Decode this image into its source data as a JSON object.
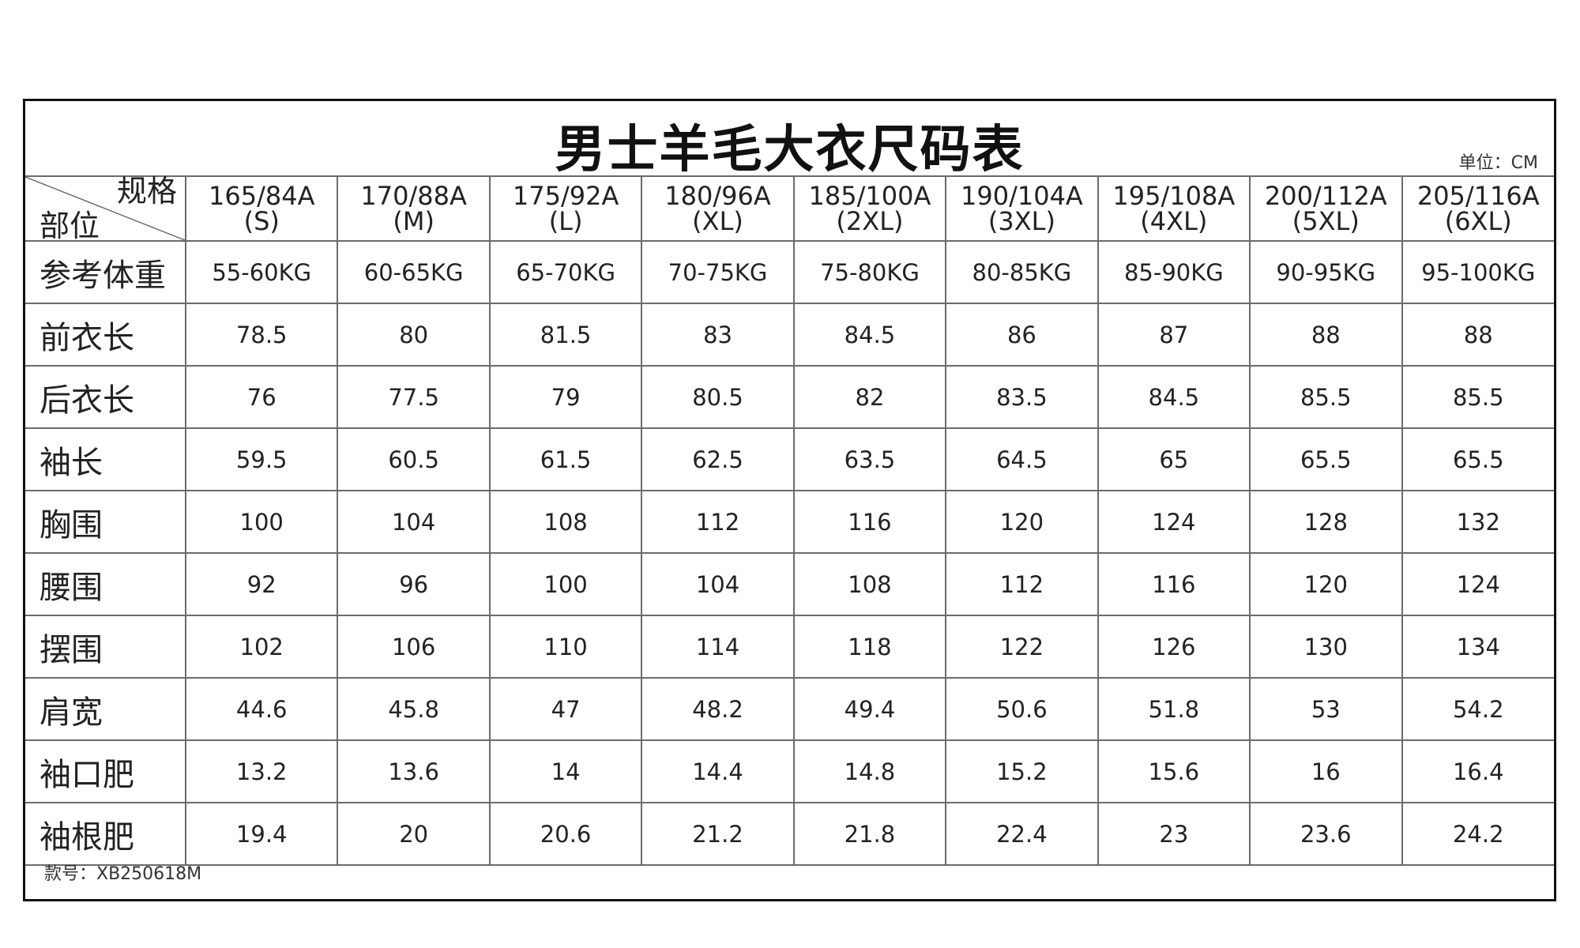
{
  "title": "男士羊毛大衣尺码表",
  "unit": "单位：CM",
  "corner": {
    "top": "规格",
    "bottom": "部位"
  },
  "sizes": [
    {
      "spec": "165/84A",
      "size": "(S)"
    },
    {
      "spec": "170/88A",
      "size": "(M)"
    },
    {
      "spec": "175/92A",
      "size": "(L)"
    },
    {
      "spec": "180/96A",
      "size": "(XL)"
    },
    {
      "spec": "185/100A",
      "size": "(2XL)"
    },
    {
      "spec": "190/104A",
      "size": "(3XL)"
    },
    {
      "spec": "195/108A",
      "size": "(4XL)"
    },
    {
      "spec": "200/112A",
      "size": "(5XL)"
    },
    {
      "spec": "205/116A",
      "size": "(6XL)"
    }
  ],
  "rows": [
    {
      "label": "参考体重",
      "values": [
        "55-60KG",
        "60-65KG",
        "65-70KG",
        "70-75KG",
        "75-80KG",
        "80-85KG",
        "85-90KG",
        "90-95KG",
        "95-100KG"
      ]
    },
    {
      "label": "前衣长",
      "values": [
        "78.5",
        "80",
        "81.5",
        "83",
        "84.5",
        "86",
        "87",
        "88",
        "88"
      ]
    },
    {
      "label": "后衣长",
      "values": [
        "76",
        "77.5",
        "79",
        "80.5",
        "82",
        "83.5",
        "84.5",
        "85.5",
        "85.5"
      ]
    },
    {
      "label": "袖长",
      "values": [
        "59.5",
        "60.5",
        "61.5",
        "62.5",
        "63.5",
        "64.5",
        "65",
        "65.5",
        "65.5"
      ]
    },
    {
      "label": "胸围",
      "values": [
        "100",
        "104",
        "108",
        "112",
        "116",
        "120",
        "124",
        "128",
        "132"
      ]
    },
    {
      "label": "腰围",
      "values": [
        "92",
        "96",
        "100",
        "104",
        "108",
        "112",
        "116",
        "120",
        "124"
      ]
    },
    {
      "label": "摆围",
      "values": [
        "102",
        "106",
        "110",
        "114",
        "118",
        "122",
        "126",
        "130",
        "134"
      ]
    },
    {
      "label": "肩宽",
      "values": [
        "44.6",
        "45.8",
        "47",
        "48.2",
        "49.4",
        "50.6",
        "51.8",
        "53",
        "54.2"
      ]
    },
    {
      "label": "袖口肥",
      "values": [
        "13.2",
        "13.6",
        "14",
        "14.4",
        "14.8",
        "15.2",
        "15.6",
        "16",
        "16.4"
      ]
    },
    {
      "label": "袖根肥",
      "values": [
        "19.4",
        "20",
        "20.6",
        "21.2",
        "21.8",
        "22.4",
        "23",
        "23.6",
        "24.2"
      ]
    }
  ],
  "footer": "款号：XB250618M"
}
